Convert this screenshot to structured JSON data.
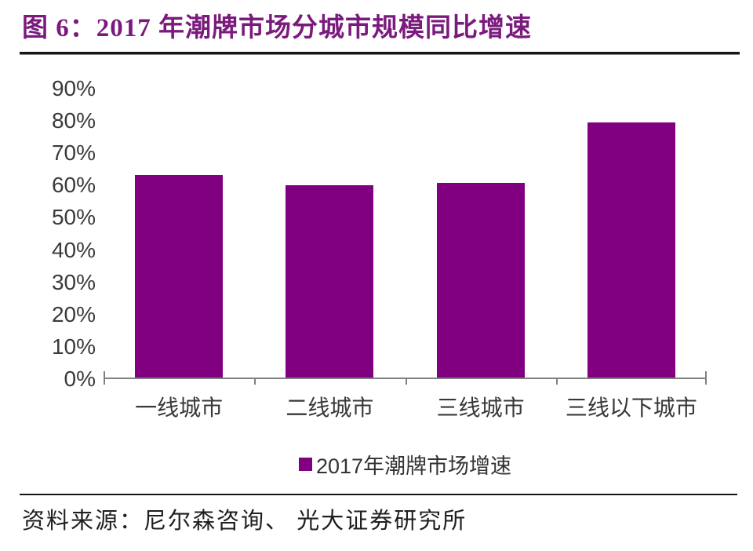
{
  "header": {
    "title": "图 6：2017 年潮牌市场分城市规模同比增速"
  },
  "chart_data": {
    "type": "bar",
    "title": "2017 年潮牌市场分城市规模同比增速",
    "categories": [
      "一线城市",
      "二线城市",
      "三线城市",
      "三线以下城市"
    ],
    "values": [
      62.7,
      59.5,
      60.3,
      79.0
    ],
    "unit": "%",
    "xlabel": "",
    "ylabel": "",
    "ylim": [
      0,
      90
    ],
    "ytick_step": 10,
    "ytick_labels": [
      "90%",
      "80%",
      "70%",
      "60%",
      "50%",
      "40%",
      "30%",
      "20%",
      "10%",
      "0%"
    ],
    "grid": false,
    "legend_position": "bottom-center",
    "legend": [
      {
        "label": "2017年潮牌市场增速",
        "color": "#800080"
      }
    ],
    "bar_color": "#800080",
    "axis_color": "#808080"
  },
  "footer": {
    "source": "资料来源：尼尔森咨询、 光大证券研究所"
  },
  "colors": {
    "title": "#7B1A7D",
    "bar": "#800080",
    "axis": "#808080",
    "tick_text": "#3a3a3a",
    "rule": "#161616"
  }
}
